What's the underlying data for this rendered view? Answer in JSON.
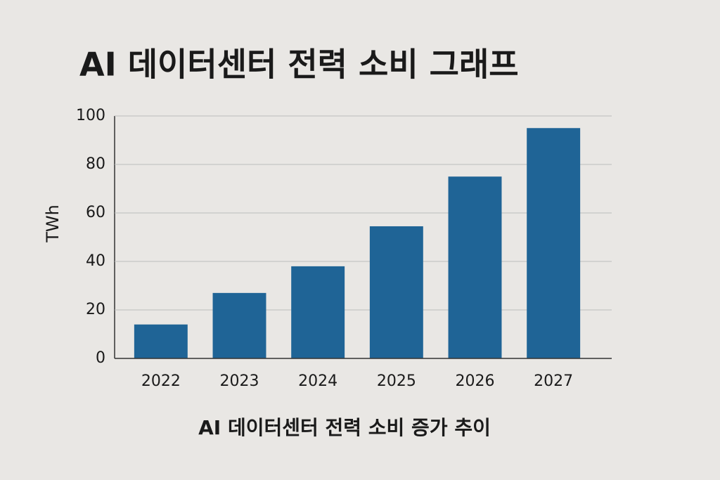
{
  "chart_data": {
    "type": "bar",
    "title": "AI 데이터센터 전력 소비 그래프",
    "xlabel": "AI 데이터센터 전력 소비 증가 추이",
    "ylabel": "TWh",
    "categories": [
      "2022",
      "2023",
      "2024",
      "2025",
      "2026",
      "2027"
    ],
    "values": [
      14,
      27,
      38,
      54.5,
      75,
      95
    ],
    "color": "#1f6496",
    "ylim": [
      0,
      100
    ],
    "yticks": [
      0,
      20,
      40,
      60,
      80,
      100
    ],
    "grid": true
  }
}
